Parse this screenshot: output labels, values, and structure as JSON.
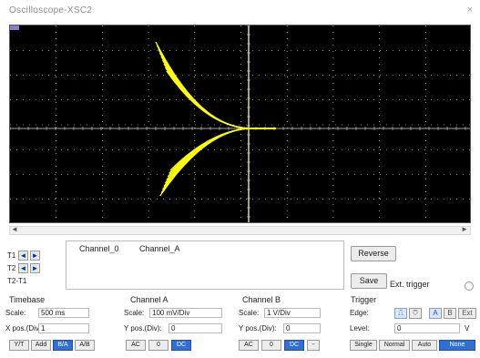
{
  "window": {
    "title": "Oscilloscope-XSC2",
    "close_glyph": "×"
  },
  "colors": {
    "trace": "#ffff00",
    "screen_bg": "#000000",
    "grid": "#ffffff",
    "active": "#2f6fd6"
  },
  "cursors": {
    "t1": "T1",
    "t2": "T2",
    "t2_t1": "T2-T1"
  },
  "readout": {
    "channel_0": "Channel_0",
    "channel_a": "Channel_A"
  },
  "buttons": {
    "reverse": "Reverse",
    "save": "Save"
  },
  "ext_trigger": "Ext. trigger",
  "timebase": {
    "label": "Timebase",
    "scale_label": "Scale:",
    "scale_value": "500 ms",
    "xpos_label": "X pos.(Div):",
    "xpos_value": "1",
    "modes": [
      "Y/T",
      "Add",
      "B/A",
      "A/B"
    ],
    "active_mode": "B/A"
  },
  "channel_a": {
    "label": "Channel A",
    "scale_label": "Scale:",
    "scale_value": "100 mV/Div",
    "ypos_label": "Y pos.(Div):",
    "ypos_value": "0",
    "couplings": [
      "AC",
      "0",
      "DC"
    ],
    "active_coupling": "DC"
  },
  "channel_b": {
    "label": "Channel B",
    "scale_label": "Scale:",
    "scale_value": "1 V/Div",
    "ypos_label": "Y pos.(Div):",
    "ypos_value": "0",
    "couplings": [
      "AC",
      "0",
      "DC",
      "-"
    ],
    "active_coupling": "DC"
  },
  "trigger": {
    "label": "Trigger",
    "edge_label": "Edge:",
    "level_label": "Level:",
    "level_value": "0",
    "level_unit": "V",
    "modes": [
      "Single",
      "Normal",
      "Auto",
      "None"
    ],
    "active_mode": "None"
  }
}
